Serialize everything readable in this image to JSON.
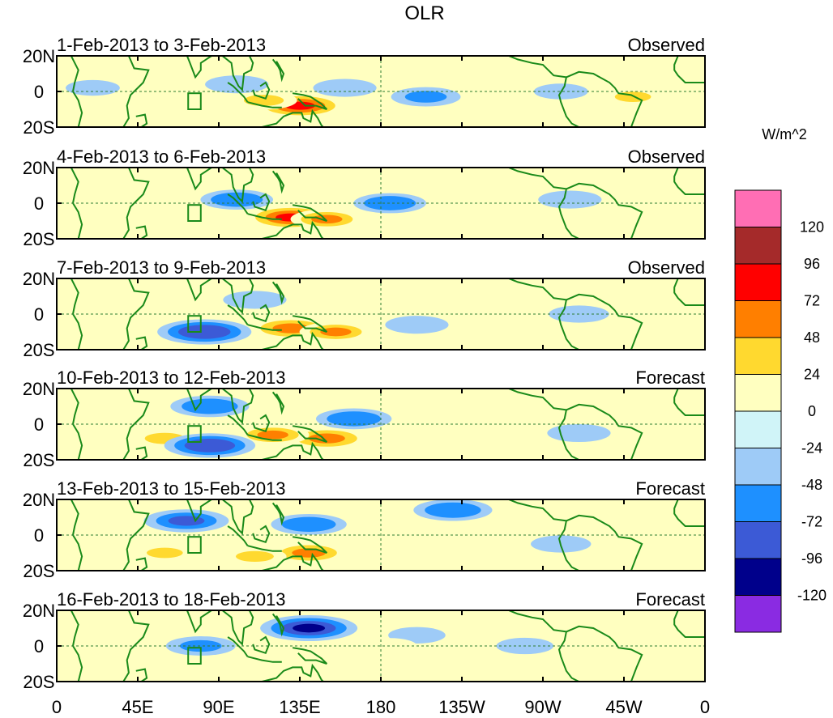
{
  "chart_data": {
    "type": "heatmap",
    "title": "OLR",
    "units": "W/m^2",
    "lat_tick_labels": [
      "20N",
      "0",
      "20S"
    ],
    "lon_tick_labels": [
      "0",
      "45E",
      "90E",
      "135E",
      "180",
      "135W",
      "90W",
      "45W",
      "0"
    ],
    "lon_range": [
      0,
      360
    ],
    "lat_range": [
      -20,
      20
    ],
    "colorbar": {
      "levels": [
        120,
        96,
        72,
        48,
        24,
        0,
        -24,
        -48,
        -72,
        -96,
        -120
      ],
      "level_labels": [
        "120",
        "96",
        "72",
        "48",
        "24",
        "0",
        "-24",
        "-48",
        "-72",
        "-96",
        "-120"
      ],
      "colors": [
        "#ff6eb4",
        "#a52a2a",
        "#ff0000",
        "#ff7f00",
        "#ffd92f",
        "#ffffc0",
        "#d0f4f8",
        "#9ecbf7",
        "#1e90ff",
        "#3c5ad6",
        "#00008b",
        "#8a2be2"
      ]
    },
    "anomaly_features": [
      {
        "panel": 0,
        "lon": 135,
        "lat": -8,
        "value": 90
      },
      {
        "panel": 0,
        "lon": 115,
        "lat": -5,
        "value": 50
      },
      {
        "panel": 0,
        "lon": 175,
        "lat": -10,
        "value": 30
      },
      {
        "panel": 0,
        "lon": 35,
        "lat": -10,
        "value": 30
      },
      {
        "panel": 0,
        "lon": 65,
        "lat": -3,
        "value": 30
      },
      {
        "panel": 0,
        "lon": 320,
        "lat": -3,
        "value": 40
      },
      {
        "panel": 0,
        "lon": 205,
        "lat": -3,
        "value": -55
      },
      {
        "panel": 0,
        "lon": 160,
        "lat": 2,
        "value": -45
      },
      {
        "panel": 0,
        "lon": 100,
        "lat": 4,
        "value": -45
      },
      {
        "panel": 0,
        "lon": 20,
        "lat": 2,
        "value": -30
      },
      {
        "panel": 0,
        "lon": 280,
        "lat": 0,
        "value": -30
      },
      {
        "panel": 1,
        "lon": 130,
        "lat": -8,
        "value": 90
      },
      {
        "panel": 1,
        "lon": 150,
        "lat": -9,
        "value": 60
      },
      {
        "panel": 1,
        "lon": 75,
        "lat": -7,
        "value": 35
      },
      {
        "panel": 1,
        "lon": 15,
        "lat": -2,
        "value": 35
      },
      {
        "panel": 1,
        "lon": 305,
        "lat": -6,
        "value": 35
      },
      {
        "panel": 1,
        "lon": 100,
        "lat": 2,
        "value": -60
      },
      {
        "panel": 1,
        "lon": 185,
        "lat": 0,
        "value": -60
      },
      {
        "panel": 1,
        "lon": 285,
        "lat": 2,
        "value": -45
      },
      {
        "panel": 2,
        "lon": 130,
        "lat": -8,
        "value": 80
      },
      {
        "panel": 2,
        "lon": 155,
        "lat": -10,
        "value": 60
      },
      {
        "panel": 2,
        "lon": 45,
        "lat": -3,
        "value": 35
      },
      {
        "panel": 2,
        "lon": 82,
        "lat": -10,
        "value": -95
      },
      {
        "panel": 2,
        "lon": 110,
        "lat": 8,
        "value": -45
      },
      {
        "panel": 2,
        "lon": 200,
        "lat": -6,
        "value": -45
      },
      {
        "panel": 2,
        "lon": 290,
        "lat": 0,
        "value": -40
      },
      {
        "panel": 3,
        "lon": 150,
        "lat": -8,
        "value": 80
      },
      {
        "panel": 3,
        "lon": 120,
        "lat": -6,
        "value": 60
      },
      {
        "panel": 3,
        "lon": 60,
        "lat": -8,
        "value": 50
      },
      {
        "panel": 3,
        "lon": 85,
        "lat": 10,
        "value": -70
      },
      {
        "panel": 3,
        "lon": 85,
        "lat": -12,
        "value": -90
      },
      {
        "panel": 3,
        "lon": 165,
        "lat": 3,
        "value": -65
      },
      {
        "panel": 3,
        "lon": 290,
        "lat": -5,
        "value": -45
      },
      {
        "panel": 3,
        "lon": 325,
        "lat": -8,
        "value": 35
      },
      {
        "panel": 4,
        "lon": 140,
        "lat": -10,
        "value": 70
      },
      {
        "panel": 4,
        "lon": 110,
        "lat": -12,
        "value": 45
      },
      {
        "panel": 4,
        "lon": 60,
        "lat": -10,
        "value": 40
      },
      {
        "panel": 4,
        "lon": 72,
        "lat": 8,
        "value": -80
      },
      {
        "panel": 4,
        "lon": 140,
        "lat": 6,
        "value": -65
      },
      {
        "panel": 4,
        "lon": 220,
        "lat": 14,
        "value": -70
      },
      {
        "panel": 4,
        "lon": 280,
        "lat": -5,
        "value": -40
      },
      {
        "panel": 4,
        "lon": 320,
        "lat": -10,
        "value": 30
      },
      {
        "panel": 5,
        "lon": 140,
        "lat": 10,
        "value": -100
      },
      {
        "panel": 5,
        "lon": 80,
        "lat": 0,
        "value": -55
      },
      {
        "panel": 5,
        "lon": 200,
        "lat": 6,
        "value": -35
      },
      {
        "panel": 5,
        "lon": 260,
        "lat": 0,
        "value": -35
      },
      {
        "panel": 5,
        "lon": 185,
        "lat": 0,
        "value": 30
      },
      {
        "panel": 5,
        "lon": 60,
        "lat": -10,
        "value": 30
      },
      {
        "panel": 5,
        "lon": 310,
        "lat": -10,
        "value": 30
      }
    ],
    "panels": [
      {
        "period": "1-Feb-2013 to 3-Feb-2013",
        "kind": "Observed"
      },
      {
        "period": "4-Feb-2013 to 6-Feb-2013",
        "kind": "Observed"
      },
      {
        "period": "7-Feb-2013 to 9-Feb-2013",
        "kind": "Observed"
      },
      {
        "period": "10-Feb-2013 to 12-Feb-2013",
        "kind": "Forecast"
      },
      {
        "period": "13-Feb-2013 to 15-Feb-2013",
        "kind": "Forecast"
      },
      {
        "period": "16-Feb-2013 to 18-Feb-2013",
        "kind": "Forecast"
      }
    ]
  }
}
